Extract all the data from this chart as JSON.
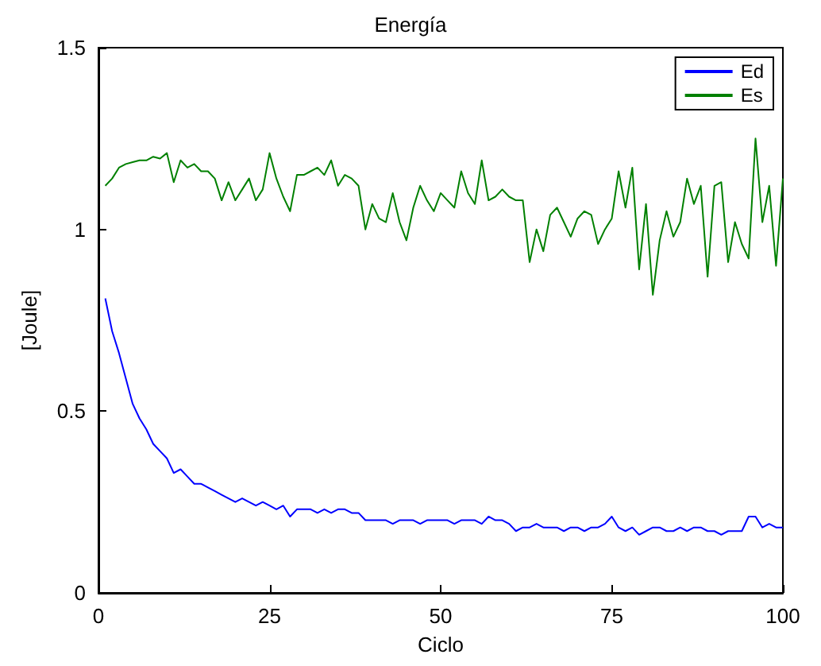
{
  "chart_data": {
    "type": "line",
    "title": "Energía",
    "xlabel": "Ciclo",
    "ylabel": "[Joule]",
    "x": [
      1,
      2,
      3,
      4,
      5,
      6,
      7,
      8,
      9,
      10,
      11,
      12,
      13,
      14,
      15,
      16,
      17,
      18,
      19,
      20,
      21,
      22,
      23,
      24,
      25,
      26,
      27,
      28,
      29,
      30,
      31,
      32,
      33,
      34,
      35,
      36,
      37,
      38,
      39,
      40,
      41,
      42,
      43,
      44,
      45,
      46,
      47,
      48,
      49,
      50,
      51,
      52,
      53,
      54,
      55,
      56,
      57,
      58,
      59,
      60,
      61,
      62,
      63,
      64,
      65,
      66,
      67,
      68,
      69,
      70,
      71,
      72,
      73,
      74,
      75,
      76,
      77,
      78,
      79,
      80,
      81,
      82,
      83,
      84,
      85,
      86,
      87,
      88,
      89,
      90,
      91,
      92,
      93,
      94,
      95,
      96,
      97,
      98,
      99,
      100
    ],
    "series": [
      {
        "name": "Ed",
        "color": "#0000ff",
        "values": [
          0.81,
          0.72,
          0.66,
          0.59,
          0.52,
          0.48,
          0.45,
          0.41,
          0.39,
          0.37,
          0.33,
          0.34,
          0.32,
          0.3,
          0.3,
          0.29,
          0.28,
          0.27,
          0.26,
          0.25,
          0.26,
          0.25,
          0.24,
          0.25,
          0.24,
          0.23,
          0.24,
          0.21,
          0.23,
          0.23,
          0.23,
          0.22,
          0.23,
          0.22,
          0.23,
          0.23,
          0.22,
          0.22,
          0.2,
          0.2,
          0.2,
          0.2,
          0.19,
          0.2,
          0.2,
          0.2,
          0.19,
          0.2,
          0.2,
          0.2,
          0.2,
          0.19,
          0.2,
          0.2,
          0.2,
          0.19,
          0.21,
          0.2,
          0.2,
          0.19,
          0.17,
          0.18,
          0.18,
          0.19,
          0.18,
          0.18,
          0.18,
          0.17,
          0.18,
          0.18,
          0.17,
          0.18,
          0.18,
          0.19,
          0.21,
          0.18,
          0.17,
          0.18,
          0.16,
          0.17,
          0.18,
          0.18,
          0.17,
          0.17,
          0.18,
          0.17,
          0.18,
          0.18,
          0.17,
          0.17,
          0.16,
          0.17,
          0.17,
          0.17,
          0.21,
          0.21,
          0.18,
          0.19,
          0.18,
          0.18
        ]
      },
      {
        "name": "Es",
        "color": "#008000",
        "values": [
          1.12,
          1.14,
          1.17,
          1.18,
          1.185,
          1.19,
          1.19,
          1.2,
          1.195,
          1.21,
          1.13,
          1.19,
          1.17,
          1.18,
          1.16,
          1.16,
          1.14,
          1.08,
          1.13,
          1.08,
          1.11,
          1.14,
          1.08,
          1.11,
          1.21,
          1.14,
          1.09,
          1.05,
          1.15,
          1.15,
          1.16,
          1.17,
          1.15,
          1.19,
          1.12,
          1.15,
          1.14,
          1.12,
          1.0,
          1.07,
          1.03,
          1.02,
          1.1,
          1.02,
          0.97,
          1.06,
          1.12,
          1.08,
          1.05,
          1.1,
          1.08,
          1.06,
          1.16,
          1.1,
          1.07,
          1.19,
          1.08,
          1.09,
          1.11,
          1.09,
          1.08,
          1.08,
          0.91,
          1.0,
          0.94,
          1.04,
          1.06,
          1.02,
          0.98,
          1.03,
          1.05,
          1.04,
          0.96,
          1.0,
          1.03,
          1.16,
          1.06,
          1.17,
          0.89,
          1.07,
          0.82,
          0.97,
          1.05,
          0.98,
          1.02,
          1.14,
          1.07,
          1.12,
          0.87,
          1.12,
          1.13,
          0.91,
          1.02,
          0.96,
          0.92,
          1.25,
          1.02,
          1.12,
          0.9,
          1.14
        ]
      }
    ],
    "xlim": [
      0,
      100
    ],
    "xticks": [
      0,
      25,
      50,
      75,
      100
    ],
    "ylim": [
      0,
      1.5
    ],
    "yticks": [
      0,
      0.5,
      1,
      1.5
    ],
    "grid": false,
    "legend": "top right",
    "marker": "none",
    "line_style": "solid"
  }
}
